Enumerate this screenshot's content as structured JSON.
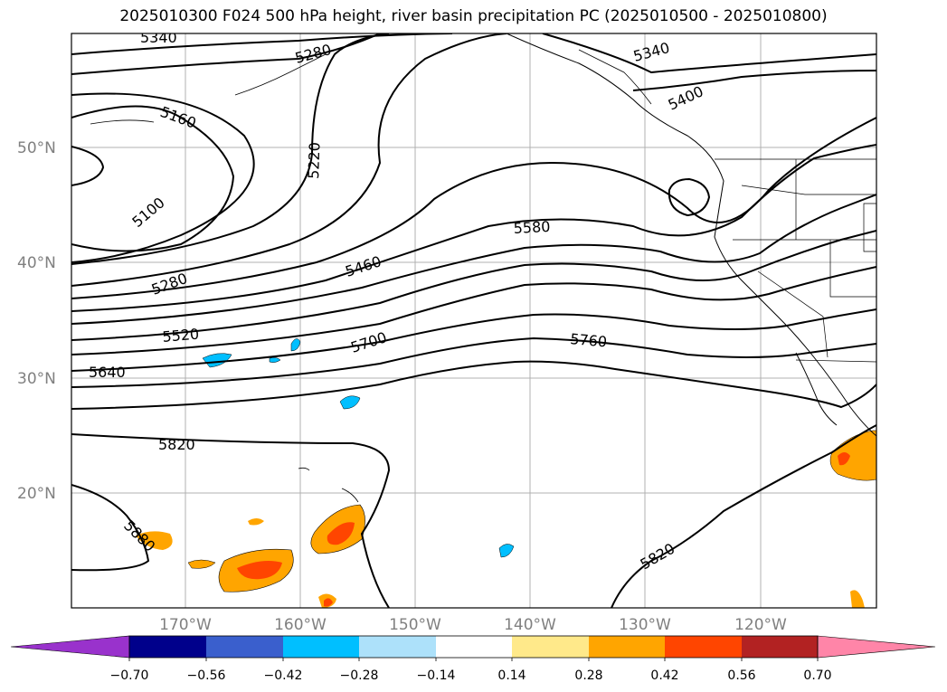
{
  "title": "2025010300 F024 500 hPa height, river basin precipitation PC (2025010500 - 2025010800)",
  "map": {
    "lat_labels": [
      "50°N",
      "40°N",
      "30°N",
      "20°N"
    ],
    "lon_labels": [
      "170°W",
      "160°W",
      "150°W",
      "140°W",
      "130°W",
      "120°W"
    ],
    "contour_labels": [
      "5340",
      "5280",
      "5160",
      "5100",
      "5220",
      "5280",
      "5520",
      "5640",
      "5460",
      "5580",
      "5700",
      "5760",
      "5820",
      "5880",
      "5340",
      "5400",
      "5820"
    ]
  },
  "colorbar": {
    "ticks": [
      "−0.70",
      "−0.56",
      "−0.42",
      "−0.28",
      "−0.14",
      "0.14",
      "0.28",
      "0.42",
      "0.56",
      "0.70"
    ],
    "colors": [
      "#9932CC",
      "#00008B",
      "#3A5FCD",
      "#00BFFF",
      "#ADE1FA",
      "#FFFFFF",
      "#FFE98A",
      "#FFA500",
      "#FF4500",
      "#B22222",
      "#FF85A8"
    ]
  }
}
